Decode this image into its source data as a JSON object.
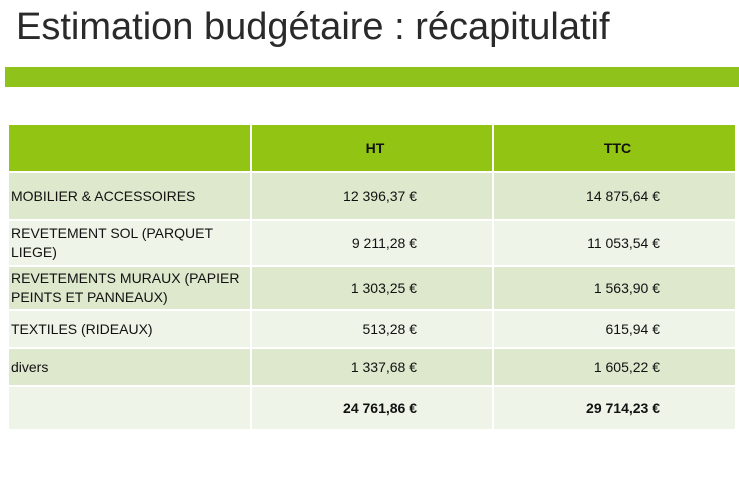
{
  "slide": {
    "title": "Estimation budgétaire : récapitulatif",
    "accent_color": "#8fc21a"
  },
  "table": {
    "headers": [
      "",
      "HT",
      "TTC"
    ],
    "rows": [
      {
        "label": "MOBILIER & ACCESSOIRES",
        "ht": "12 396,37 €",
        "ttc": "14 875,64 €"
      },
      {
        "label": "REVETEMENT SOL (PARQUET LIEGE)",
        "ht": "9 211,28 €",
        "ttc": "11 053,54 €"
      },
      {
        "label": "REVETEMENTS MURAUX (PAPIER PEINTS ET PANNEAUX)",
        "ht": "1 303,25 €",
        "ttc": "1 563,90 €"
      },
      {
        "label": "TEXTILES (RIDEAUX)",
        "ht": "513,28 €",
        "ttc": "615,94 €"
      },
      {
        "label": "divers",
        "ht": "1 337,68 €",
        "ttc": "1 605,22 €"
      }
    ],
    "total": {
      "label": "",
      "ht": "24 761,86 €",
      "ttc": "29 714,23 €"
    }
  }
}
